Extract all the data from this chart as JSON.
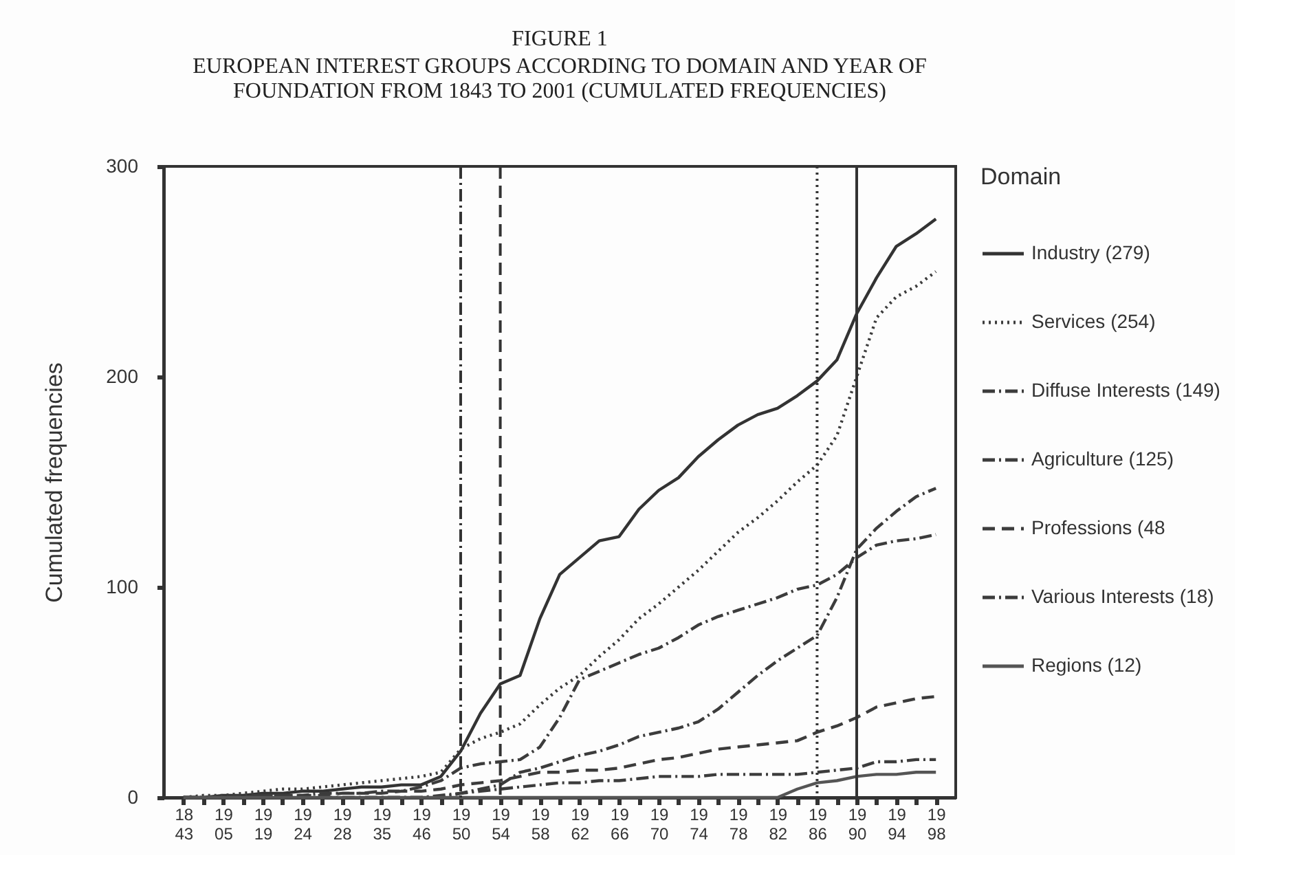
{
  "chart_data": {
    "type": "line",
    "title": "FIGURE 1",
    "subtitle": "EUROPEAN INTEREST GROUPS ACCORDING TO DOMAIN AND YEAR OF FOUNDATION FROM 1843 TO 2001 (CUMULATED FREQUENCIES)",
    "ylabel": "Cumulated frequencies",
    "legend_title": "Domain",
    "legend": "right",
    "grid": false,
    "categories": [
      "1843",
      null,
      "1905",
      null,
      "1919",
      null,
      "1924",
      null,
      "1928",
      null,
      "1935",
      null,
      "1946",
      null,
      "1950",
      null,
      "1954",
      null,
      "1958",
      null,
      "1962",
      null,
      "1966",
      null,
      "1970",
      null,
      "1974",
      null,
      "1978",
      null,
      "1982",
      null,
      "1986",
      null,
      "1990",
      null,
      "1994",
      null,
      "1998"
    ],
    "ylim": [
      0,
      300
    ],
    "yticks": [
      0,
      100,
      200,
      300
    ],
    "series": [
      {
        "name": "Industry (279)",
        "color": "#333333",
        "line_style": "solid",
        "values": [
          0,
          0,
          1,
          1,
          2,
          2,
          3,
          3,
          4,
          5,
          5,
          6,
          6,
          10,
          22,
          40,
          54,
          58,
          85,
          106,
          114,
          122,
          124,
          137,
          146,
          152,
          162,
          170,
          177,
          182,
          185,
          191,
          198,
          208,
          230,
          247,
          262,
          268,
          275
        ]
      },
      {
        "name": "Services (254)",
        "color": "#3c3c3c",
        "line_style": "dotted",
        "values": [
          0,
          1,
          1,
          2,
          3,
          4,
          4,
          5,
          6,
          7,
          8,
          9,
          10,
          12,
          23,
          28,
          31,
          35,
          44,
          52,
          58,
          67,
          75,
          85,
          92,
          100,
          108,
          117,
          126,
          133,
          141,
          150,
          158,
          172,
          200,
          228,
          238,
          243,
          250
        ]
      },
      {
        "name": "Diffuse Interests (149)",
        "color": "#3c3c3c",
        "line_style": "dashdot",
        "values": [
          0,
          0,
          0,
          0,
          0,
          0,
          0,
          0,
          0,
          0,
          0,
          0,
          0,
          0,
          2,
          4,
          6,
          12,
          14,
          17,
          20,
          22,
          25,
          29,
          31,
          33,
          36,
          42,
          50,
          58,
          65,
          71,
          77,
          95,
          118,
          128,
          136,
          143,
          147
        ]
      },
      {
        "name": "Agriculture (125)",
        "color": "#3c3c3c",
        "line_style": "dashdot",
        "values": [
          0,
          0,
          0,
          1,
          1,
          1,
          1,
          2,
          2,
          2,
          3,
          3,
          5,
          8,
          14,
          16,
          17,
          18,
          24,
          38,
          56,
          60,
          64,
          68,
          71,
          76,
          82,
          86,
          89,
          92,
          95,
          99,
          101,
          106,
          114,
          120,
          122,
          123,
          125
        ]
      },
      {
        "name": "Professions (48",
        "color": "#3c3c3c",
        "line_style": "dashed",
        "values": [
          0,
          0,
          0,
          0,
          1,
          1,
          1,
          1,
          2,
          2,
          2,
          3,
          3,
          4,
          6,
          7,
          8,
          10,
          12,
          12,
          13,
          13,
          14,
          16,
          18,
          19,
          21,
          23,
          24,
          25,
          26,
          27,
          31,
          34,
          38,
          43,
          45,
          47,
          48
        ]
      },
      {
        "name": "Various Interests (18)",
        "color": "#3c3c3c",
        "line_style": "dashdot",
        "values": [
          0,
          0,
          0,
          0,
          0,
          0,
          0,
          0,
          0,
          0,
          0,
          0,
          0,
          1,
          2,
          3,
          4,
          5,
          6,
          7,
          7,
          8,
          8,
          9,
          10,
          10,
          10,
          11,
          11,
          11,
          11,
          11,
          12,
          13,
          14,
          17,
          17,
          18,
          18
        ]
      },
      {
        "name": "Regions (12)",
        "color": "#555555",
        "line_style": "solid",
        "values": [
          0,
          0,
          0,
          0,
          0,
          0,
          0,
          0,
          0,
          0,
          0,
          0,
          0,
          0,
          0,
          0,
          0,
          0,
          0,
          0,
          0,
          0,
          0,
          0,
          0,
          0,
          0,
          0,
          0,
          0,
          0,
          4,
          7,
          8,
          10,
          11,
          11,
          12,
          12
        ]
      }
    ],
    "ref_lines": [
      {
        "axis": "x",
        "value": "1950",
        "color": "#333333",
        "line_style": "dashdot"
      },
      {
        "axis": "x",
        "value": "1954",
        "color": "#333333",
        "line_style": "dashed"
      },
      {
        "axis": "x",
        "value": "1986",
        "color": "#333333",
        "line_style": "dotted"
      },
      {
        "axis": "x",
        "value": "1990",
        "color": "#333333",
        "line_style": "solid"
      }
    ]
  }
}
